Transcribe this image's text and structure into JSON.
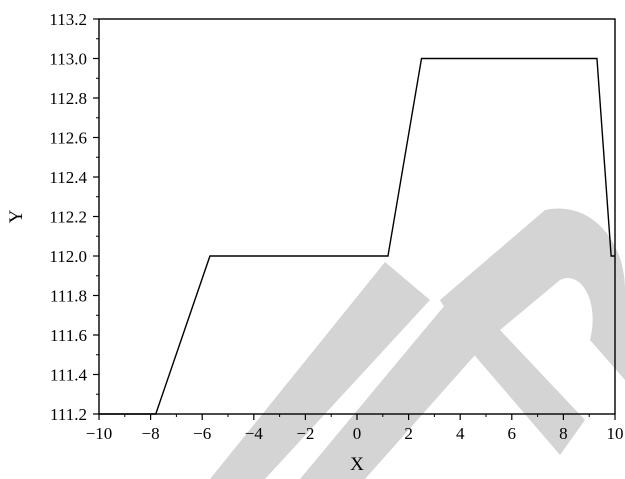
{
  "chart_data": {
    "type": "line",
    "title": "",
    "xlabel": "X",
    "ylabel": "Y",
    "xlim": [
      -10,
      10
    ],
    "ylim": [
      111.2,
      113.2
    ],
    "x_ticks": [
      -10,
      -8,
      -6,
      -4,
      -2,
      0,
      2,
      4,
      6,
      8,
      10
    ],
    "x_tick_labels": [
      "−10",
      "−8",
      "−6",
      "−4",
      "−2",
      "0",
      "2",
      "4",
      "6",
      "8",
      "10"
    ],
    "y_ticks": [
      111.2,
      111.4,
      111.6,
      111.8,
      112.0,
      112.2,
      112.4,
      112.6,
      112.8,
      113.0,
      113.2
    ],
    "y_tick_labels": [
      "111.2",
      "111.4",
      "111.6",
      "111.8",
      "112.0",
      "112.2",
      "112.4",
      "112.6",
      "112.8",
      "113.0",
      "113.2"
    ],
    "grid": false,
    "legend": "none",
    "series": [
      {
        "color": "#000000",
        "x": [
          -10,
          -7.8,
          -5.7,
          1.2,
          2.5,
          9.3,
          9.85,
          10
        ],
        "y": [
          111.2,
          111.2,
          112.0,
          112.0,
          113.0,
          113.0,
          112.0,
          112.0
        ]
      }
    ]
  }
}
